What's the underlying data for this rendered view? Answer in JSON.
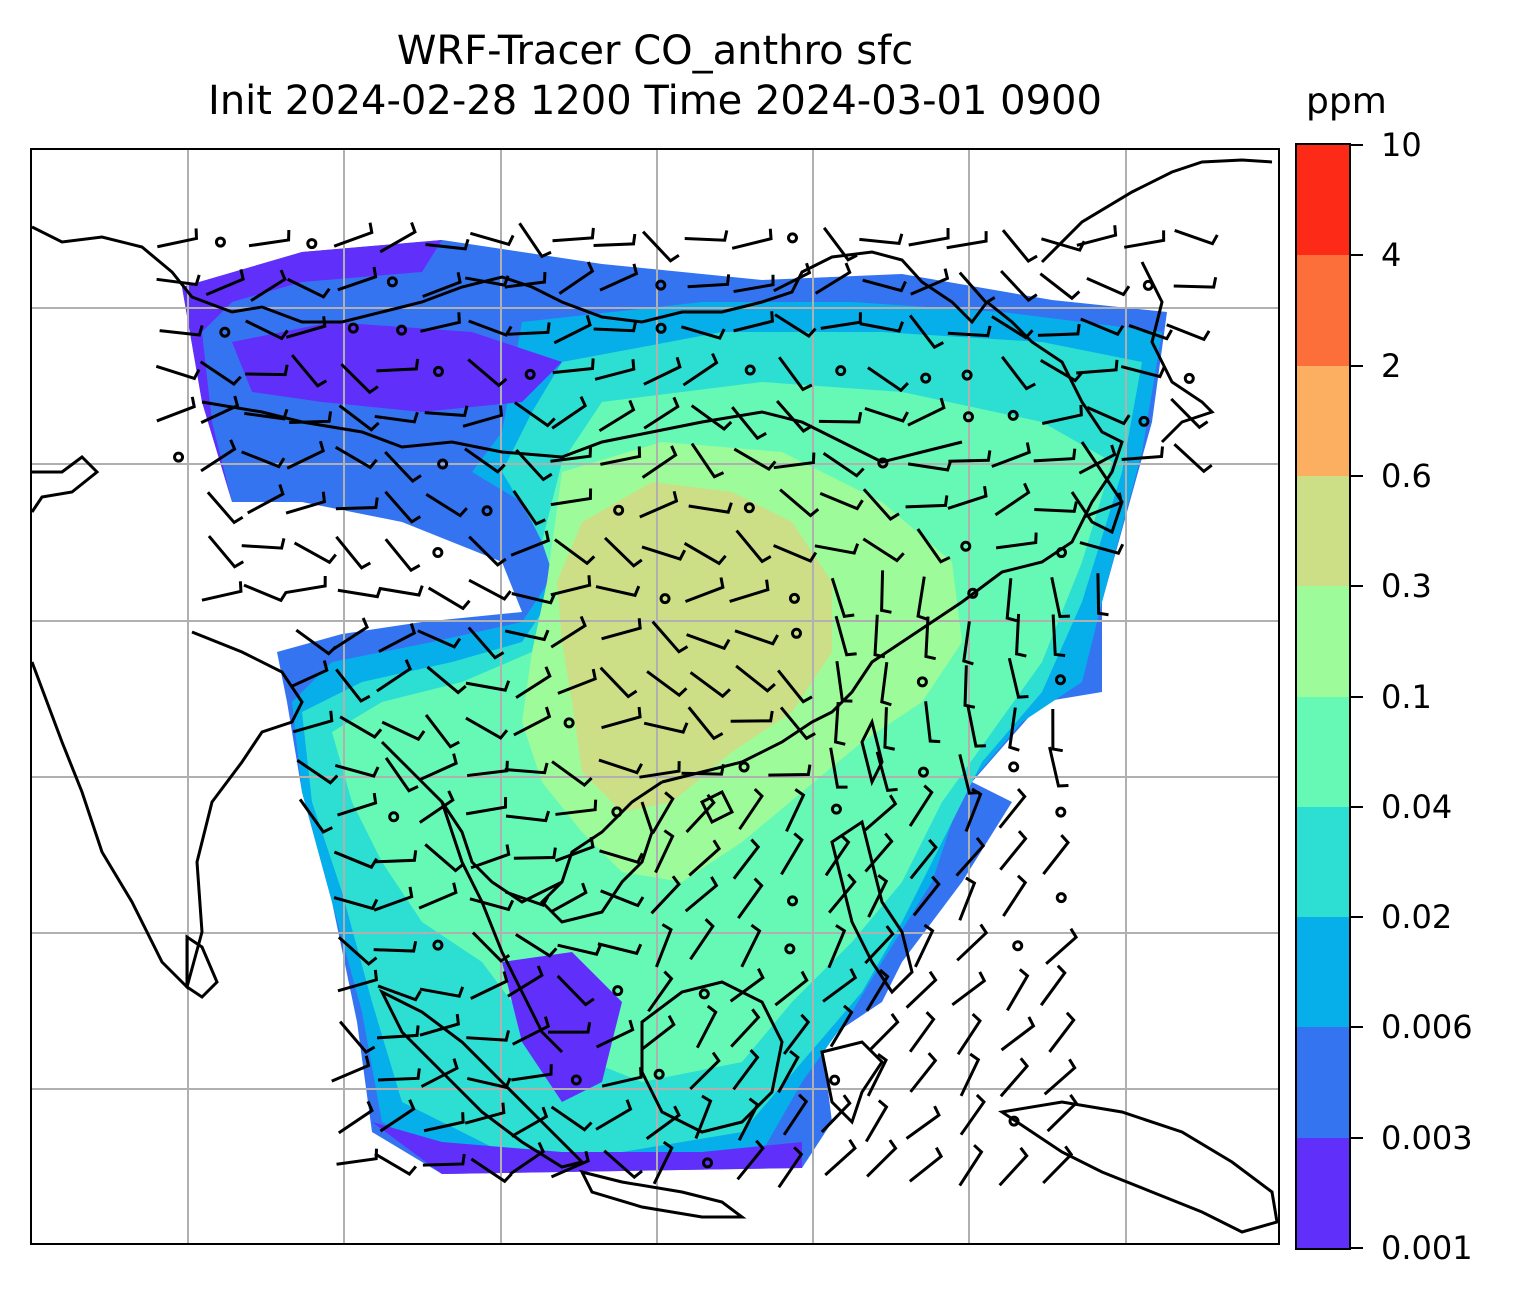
{
  "title": {
    "line1": "WRF-Tracer CO_anthro sfc",
    "line2": "Init 2024-02-28 1200 Time 2024-03-01 0900"
  },
  "colorbar": {
    "units": "ppm",
    "levels": [
      "0.001",
      "0.003",
      "0.006",
      "0.02",
      "0.04",
      "0.1",
      "0.3",
      "0.6",
      "2",
      "4",
      "10"
    ],
    "colors": [
      "#6030fa",
      "#3574f1",
      "#06aeea",
      "#2ddfd2",
      "#66f9b6",
      "#9efb99",
      "#ccdf87",
      "#fcae61",
      "#fc6e3a",
      "#fc2a16"
    ]
  },
  "map": {
    "gridlines": true,
    "features": [
      "coastlines",
      "country borders",
      "wind barbs",
      "calm-wind circles"
    ]
  }
}
